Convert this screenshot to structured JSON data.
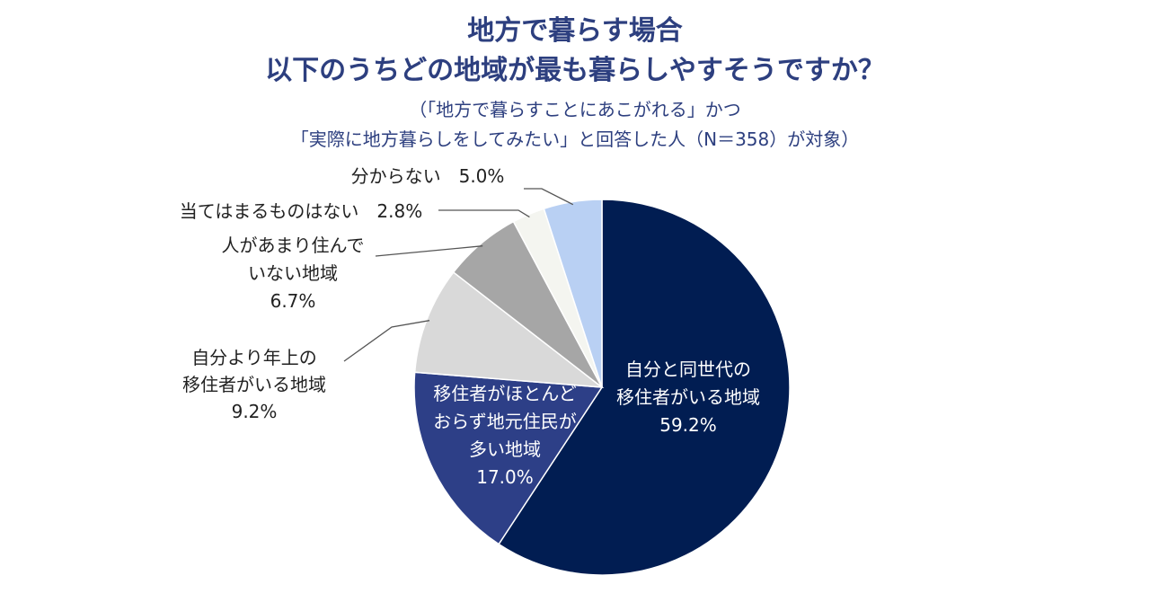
{
  "chart_data": {
    "type": "pie",
    "title": [
      "地方で暮らす場合",
      "以下のうちどの地域が最も暮らしやすそうですか？"
    ],
    "subtitle": [
      "（「地方で暮らすことにあこがれる」かつ",
      "「実際に地方暮らしをしてみたい」と回答した人（N＝358）が対象）"
    ],
    "slices": [
      {
        "name": "自分と同世代の移住者がいる地域",
        "lines": [
          "自分と同世代の",
          "移住者がいる地域",
          "59.2%"
        ],
        "value": 59.2,
        "color": "#011d52"
      },
      {
        "name": "移住者がほとんどおらず地元住民が多い地域",
        "lines": [
          "移住者がほとんど",
          "おらず地元住民が",
          "多い地域",
          "17.0%"
        ],
        "value": 17.0,
        "color": "#2d3f87"
      },
      {
        "name": "自分より年上の移住者がいる地域",
        "lines": [
          "自分より年上の",
          "移住者がいる地域",
          "9.2%"
        ],
        "value": 9.2,
        "color": "#d9d9d9"
      },
      {
        "name": "人があまり住んでいない地域",
        "lines": [
          "人があまり住んで",
          "いない地域",
          "6.7%"
        ],
        "value": 6.7,
        "color": "#a6a6a6"
      },
      {
        "name": "当てはまるものはない",
        "lines": [
          "当てはまるものはない　2.8%"
        ],
        "value": 2.8,
        "color": "#f4f5f0"
      },
      {
        "name": "分からない",
        "lines": [
          "分からない　5.0%"
        ],
        "value": 5.0,
        "color": "#b9d0f3"
      }
    ],
    "start_angle": "12 o'clock",
    "direction": "clockwise"
  }
}
